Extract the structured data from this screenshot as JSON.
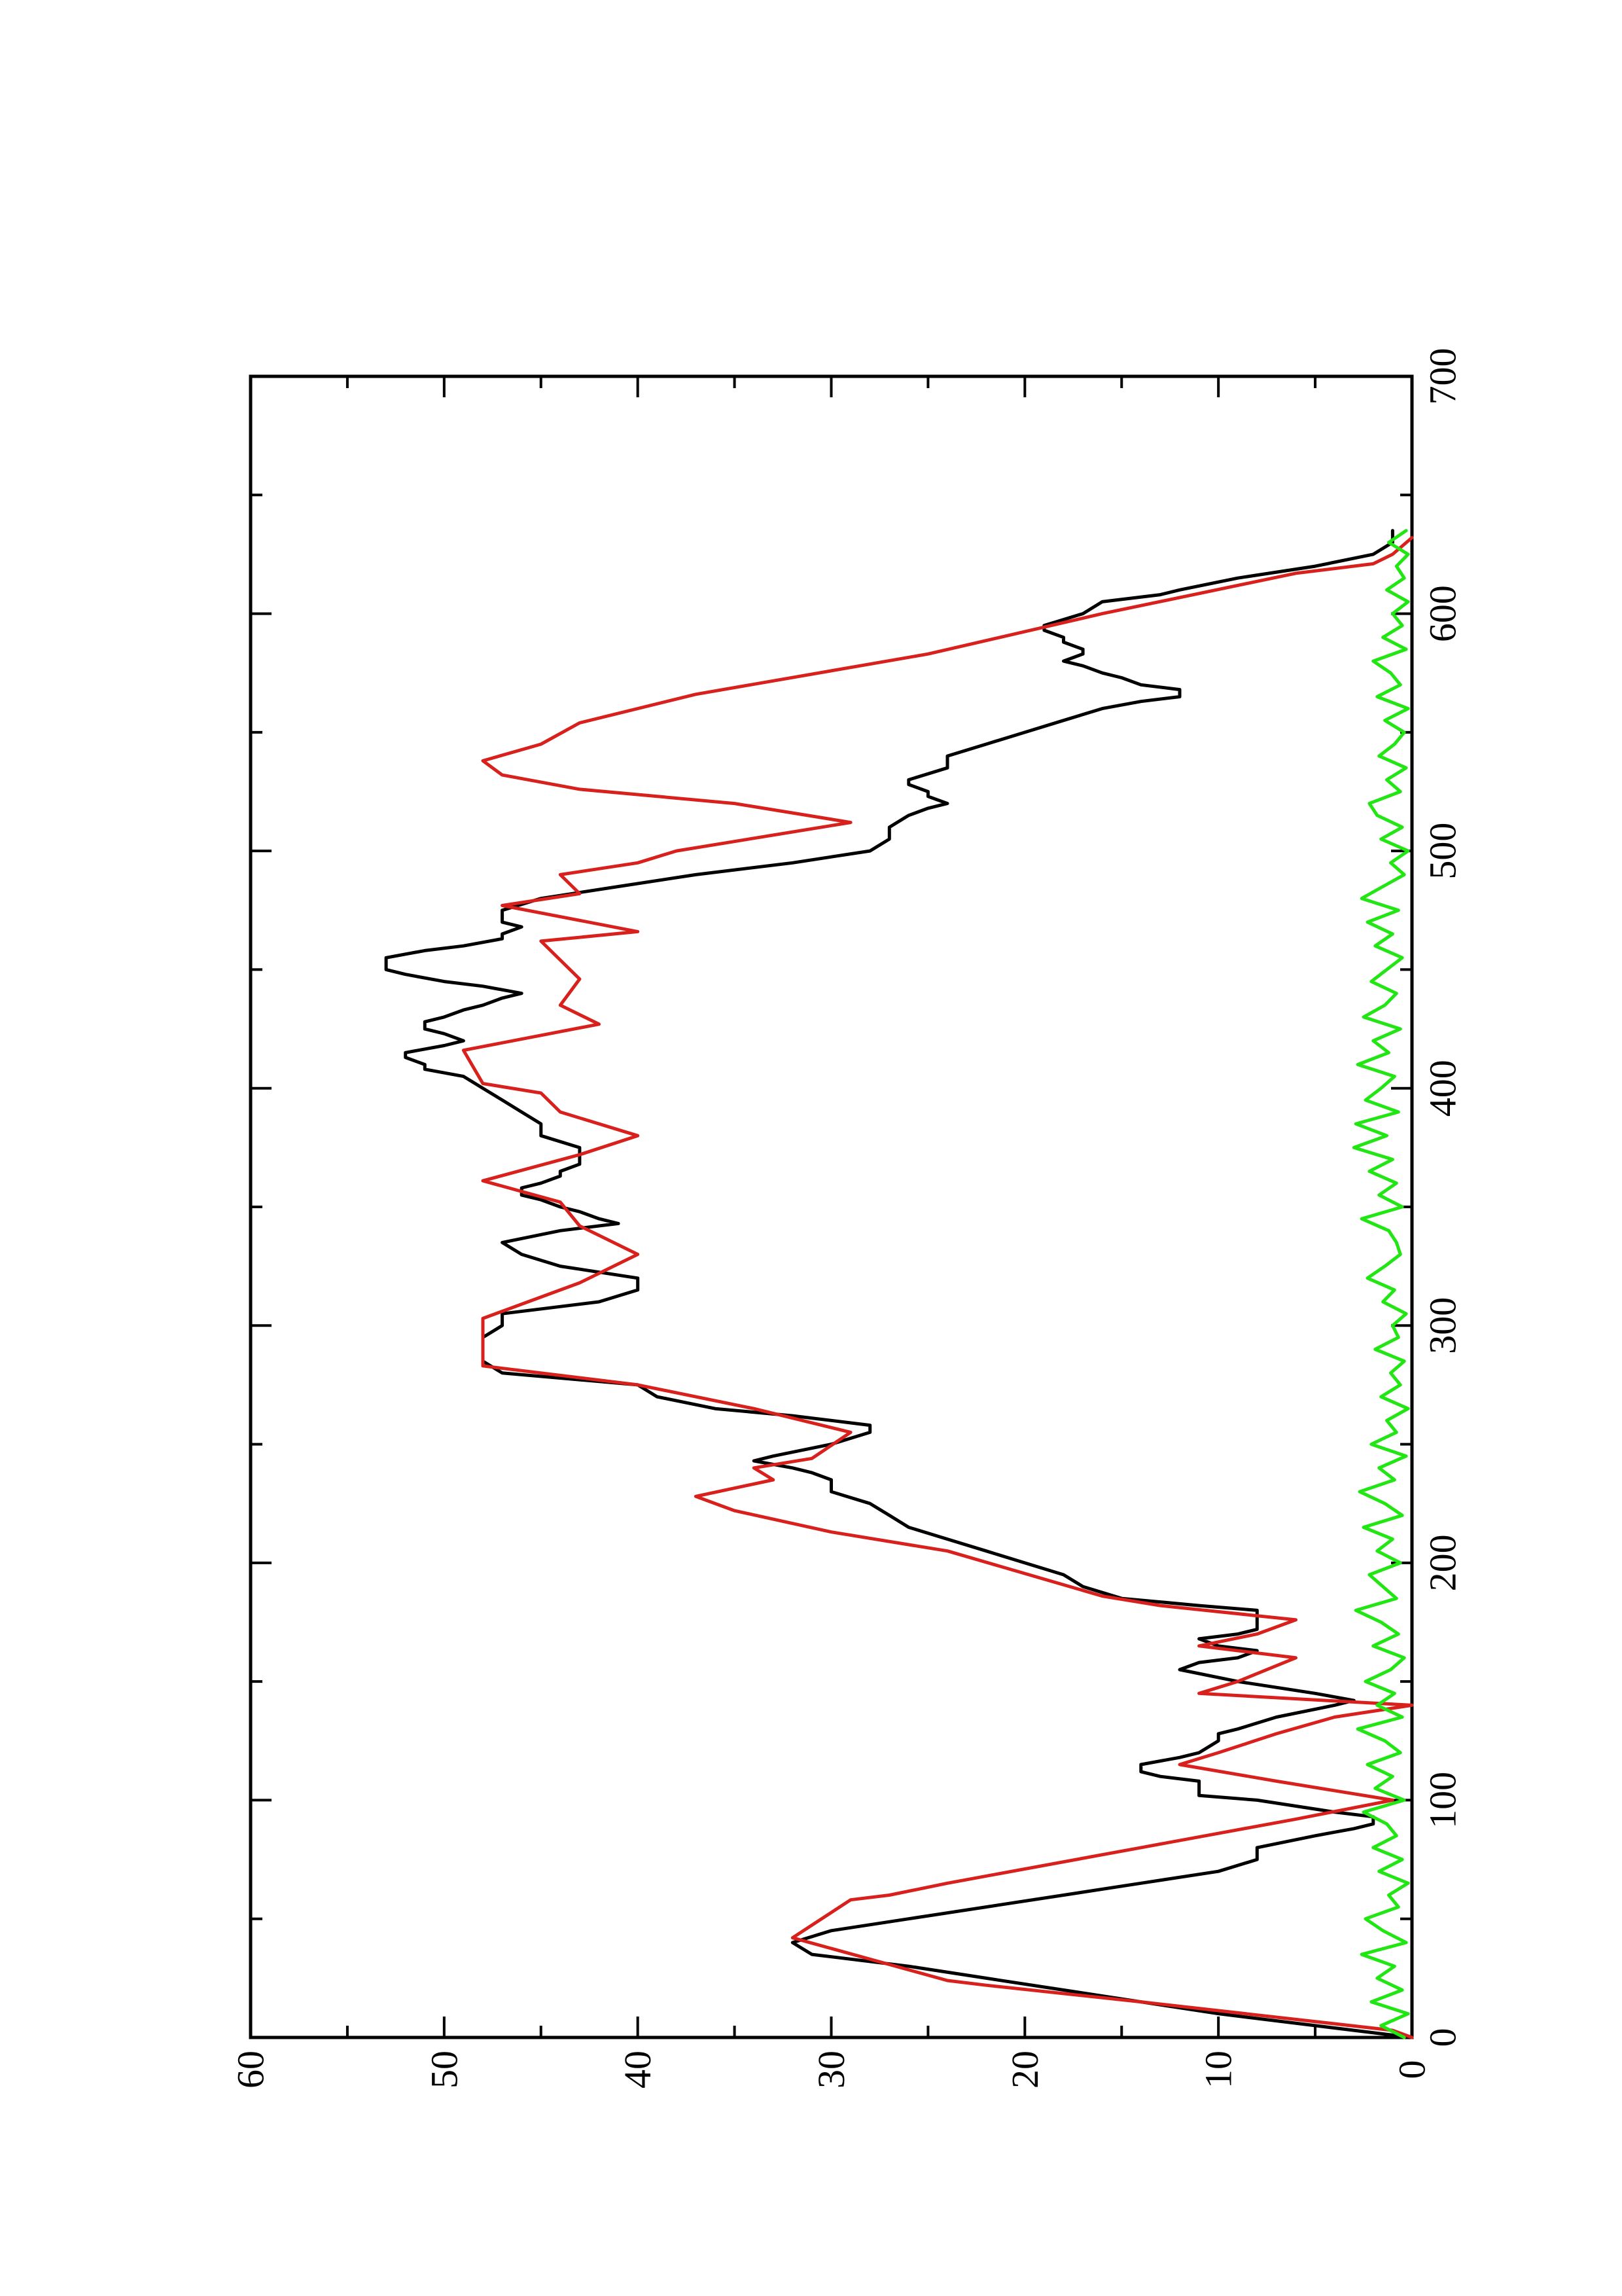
{
  "chart_data": {
    "type": "line",
    "orientation": "rotated-90-ccw",
    "title": "",
    "xlabel": "",
    "ylabel": "",
    "xlim": [
      0,
      700
    ],
    "ylim": [
      0,
      60
    ],
    "x_ticks": [
      0,
      100,
      200,
      300,
      400,
      500,
      600,
      700
    ],
    "x_tick_labels": [
      "0",
      "100",
      "200",
      "300",
      "400",
      "500",
      "600",
      "700"
    ],
    "y_ticks": [
      0,
      10,
      20,
      30,
      40,
      50,
      60
    ],
    "y_tick_labels": [
      "0",
      "10",
      "20",
      "30",
      "40",
      "50",
      "60"
    ],
    "grid": false,
    "legend": "none",
    "series": [
      {
        "color": "#000000",
        "x": [
          0,
          5,
          10,
          15,
          20,
          25,
          30,
          35,
          40,
          45,
          50,
          55,
          60,
          65,
          70,
          75,
          80,
          85,
          88,
          90,
          93,
          95,
          100,
          102,
          105,
          108,
          110,
          112,
          115,
          118,
          120,
          125,
          128,
          130,
          135,
          140,
          142,
          145,
          150,
          155,
          158,
          160,
          163,
          165,
          168,
          170,
          172,
          175,
          180,
          182,
          185,
          190,
          195,
          200,
          205,
          210,
          215,
          220,
          225,
          230,
          235,
          238,
          240,
          243,
          245,
          250,
          255,
          258,
          262,
          265,
          270,
          275,
          280,
          285,
          290,
          295,
          300,
          305,
          310,
          315,
          320,
          325,
          330,
          335,
          340,
          343,
          345,
          348,
          350,
          353,
          355,
          358,
          360,
          363,
          365,
          368,
          370,
          375,
          380,
          385,
          390,
          395,
          400,
          405,
          408,
          410,
          413,
          415,
          418,
          420,
          423,
          425,
          428,
          430,
          433,
          435,
          438,
          440,
          443,
          445,
          448,
          450,
          453,
          455,
          458,
          460,
          463,
          465,
          468,
          470,
          475,
          480,
          485,
          490,
          495,
          500,
          505,
          510,
          515,
          518,
          520,
          523,
          525,
          528,
          530,
          535,
          540,
          545,
          550,
          555,
          560,
          563,
          565,
          568,
          570,
          573,
          575,
          578,
          580,
          583,
          585,
          588,
          590,
          593,
          595,
          600,
          605,
          608,
          610,
          615,
          620,
          625,
          630,
          635
        ],
        "y": [
          0,
          5,
          10,
          14,
          18,
          22,
          26,
          31,
          32,
          30,
          26,
          22,
          18,
          14,
          10,
          8,
          8,
          5,
          3,
          2,
          2,
          4,
          8,
          11,
          11,
          11,
          13,
          14,
          14,
          12,
          11,
          10,
          10,
          9,
          7,
          4,
          3,
          5,
          9,
          12,
          11,
          9,
          8,
          10,
          11,
          9,
          8,
          8,
          8,
          11,
          15,
          17,
          18,
          20,
          22,
          24,
          26,
          27,
          28,
          30,
          30,
          31,
          32,
          34,
          33,
          30,
          28,
          28,
          32,
          36,
          39,
          40,
          47,
          48,
          48,
          48,
          47,
          47,
          42,
          40,
          40,
          44,
          46,
          47,
          44,
          41,
          42,
          43,
          44,
          45,
          46,
          46,
          45,
          44,
          44,
          43,
          43,
          43,
          45,
          45,
          46,
          47,
          48,
          49,
          51,
          51,
          52,
          52,
          50,
          49,
          50,
          51,
          51,
          50,
          49,
          48,
          47,
          46,
          48,
          50,
          52,
          53,
          53,
          53,
          51,
          49,
          47,
          47,
          46,
          47,
          47,
          45,
          41,
          37,
          32,
          28,
          27,
          27,
          26,
          25,
          24,
          25,
          25,
          26,
          26,
          24,
          24,
          22,
          20,
          18,
          16,
          14,
          12,
          12,
          14,
          15,
          16,
          17,
          18,
          17,
          17,
          18,
          18,
          19,
          19,
          17,
          16,
          13,
          12,
          9,
          5,
          2,
          1,
          1
        ]
      },
      {
        "color": "#d8201c",
        "x": [
          0,
          3,
          15,
          15,
          22,
          22,
          24,
          24,
          42,
          58,
          58,
          60,
          60,
          65,
          65,
          80,
          80,
          92,
          92,
          100,
          100,
          108,
          108,
          115,
          115,
          120,
          120,
          128,
          128,
          135,
          135,
          140,
          140,
          145,
          145,
          150,
          150,
          160,
          160,
          165,
          165,
          170,
          170,
          176,
          176,
          182,
          182,
          186,
          186,
          205,
          205,
          213,
          213,
          222,
          222,
          228,
          228,
          235,
          235,
          240,
          240,
          244,
          244,
          255,
          255,
          265,
          265,
          275,
          275,
          283,
          283,
          303,
          303,
          318,
          318,
          330,
          330,
          342,
          342,
          352,
          352,
          361,
          361,
          372,
          372,
          380,
          380,
          390,
          390,
          398,
          398,
          402,
          402,
          416,
          416,
          427,
          427,
          435,
          435,
          446,
          446,
          462,
          462,
          466,
          466,
          477,
          477,
          482,
          482,
          490,
          490,
          495,
          495,
          500,
          500,
          512,
          512,
          520,
          520,
          526,
          526,
          532,
          532,
          538,
          538,
          545,
          545,
          554,
          554,
          566,
          566,
          583,
          583,
          600,
          600,
          617,
          617,
          621,
          621,
          625,
          625,
          632,
          632
        ],
        "y": [
          0,
          1,
          14,
          14,
          22,
          22,
          24,
          24,
          32,
          29,
          29,
          27,
          27,
          24,
          24,
          14,
          14,
          6,
          6,
          1,
          1,
          7,
          7,
          12,
          12,
          10,
          10,
          7,
          7,
          4,
          4,
          0,
          0,
          11,
          11,
          9,
          9,
          6,
          6,
          11,
          11,
          8,
          8,
          6,
          6,
          13,
          13,
          16,
          16,
          24,
          24,
          30,
          30,
          35,
          35,
          37,
          37,
          33,
          33,
          34,
          34,
          31,
          31,
          29,
          29,
          34,
          34,
          40,
          40,
          48,
          48,
          48,
          48,
          43,
          43,
          40,
          40,
          43,
          43,
          44,
          44,
          48,
          48,
          43,
          43,
          40,
          40,
          44,
          44,
          45,
          45,
          48,
          48,
          49,
          49,
          42,
          42,
          44,
          44,
          43,
          43,
          45,
          45,
          40,
          40,
          47,
          47,
          43,
          43,
          44,
          44,
          40,
          40,
          38,
          38,
          29,
          29,
          35,
          35,
          43,
          43,
          47,
          47,
          48,
          48,
          45,
          45,
          43,
          43,
          37,
          37,
          25,
          25,
          16,
          16,
          6,
          6,
          2,
          2,
          1,
          1,
          0,
          0
        ]
      },
      {
        "color": "#22e614",
        "x": [
          0,
          5,
          10,
          15,
          20,
          25,
          30,
          35,
          40,
          45,
          50,
          55,
          60,
          65,
          70,
          75,
          80,
          85,
          90,
          95,
          100,
          105,
          110,
          115,
          120,
          125,
          130,
          135,
          140,
          145,
          150,
          155,
          160,
          165,
          170,
          175,
          180,
          185,
          190,
          195,
          200,
          205,
          210,
          215,
          220,
          225,
          230,
          235,
          240,
          245,
          250,
          255,
          260,
          265,
          270,
          275,
          280,
          285,
          290,
          295,
          300,
          305,
          310,
          315,
          320,
          325,
          330,
          335,
          340,
          345,
          350,
          355,
          360,
          365,
          370,
          375,
          380,
          385,
          390,
          395,
          400,
          405,
          410,
          415,
          420,
          425,
          430,
          435,
          440,
          445,
          450,
          455,
          460,
          465,
          470,
          475,
          480,
          485,
          490,
          495,
          500,
          505,
          510,
          515,
          520,
          525,
          530,
          535,
          540,
          545,
          550,
          555,
          560,
          565,
          570,
          575,
          580,
          585,
          590,
          595,
          600,
          605,
          610,
          615,
          620,
          625,
          630,
          635
        ],
        "y": [
          0.4,
          1.6,
          0.2,
          2.1,
          0.5,
          1.8,
          0.9,
          2.6,
          0.3,
          1.5,
          2.4,
          0.7,
          1.2,
          0.2,
          1.7,
          0.5,
          2.0,
          0.8,
          1.3,
          2.5,
          0.4,
          1.9,
          1.0,
          2.3,
          0.6,
          1.4,
          2.8,
          0.5,
          1.8,
          0.9,
          2.4,
          1.1,
          0.4,
          2.0,
          0.7,
          1.6,
          2.9,
          0.8,
          1.5,
          2.2,
          0.6,
          1.8,
          1.0,
          2.5,
          0.5,
          1.4,
          2.7,
          0.9,
          1.7,
          0.3,
          2.1,
          0.8,
          1.3,
          0.2,
          1.6,
          0.6,
          1.1,
          0.4,
          1.9,
          0.7,
          1.0,
          0.3,
          1.5,
          0.9,
          2.3,
          1.4,
          0.6,
          0.8,
          1.2,
          2.6,
          0.5,
          1.7,
          0.8,
          2.2,
          1.0,
          3.0,
          1.3,
          2.9,
          0.7,
          2.4,
          1.6,
          0.9,
          2.8,
          1.2,
          2.0,
          0.6,
          2.5,
          1.4,
          0.8,
          2.1,
          1.3,
          0.5,
          1.9,
          1.0,
          2.3,
          0.7,
          2.6,
          1.5,
          0.4,
          1.1,
          0.2,
          1.6,
          0.5,
          1.8,
          2.2,
          0.6,
          1.3,
          0.3,
          1.7,
          0.9,
          0.4,
          1.4,
          0.2,
          1.8,
          0.6,
          1.1,
          2.0,
          0.3,
          1.5,
          0.5,
          1.0,
          0.2,
          1.3,
          0.4,
          0.8,
          0.2,
          1.2,
          0.3
        ]
      }
    ]
  }
}
